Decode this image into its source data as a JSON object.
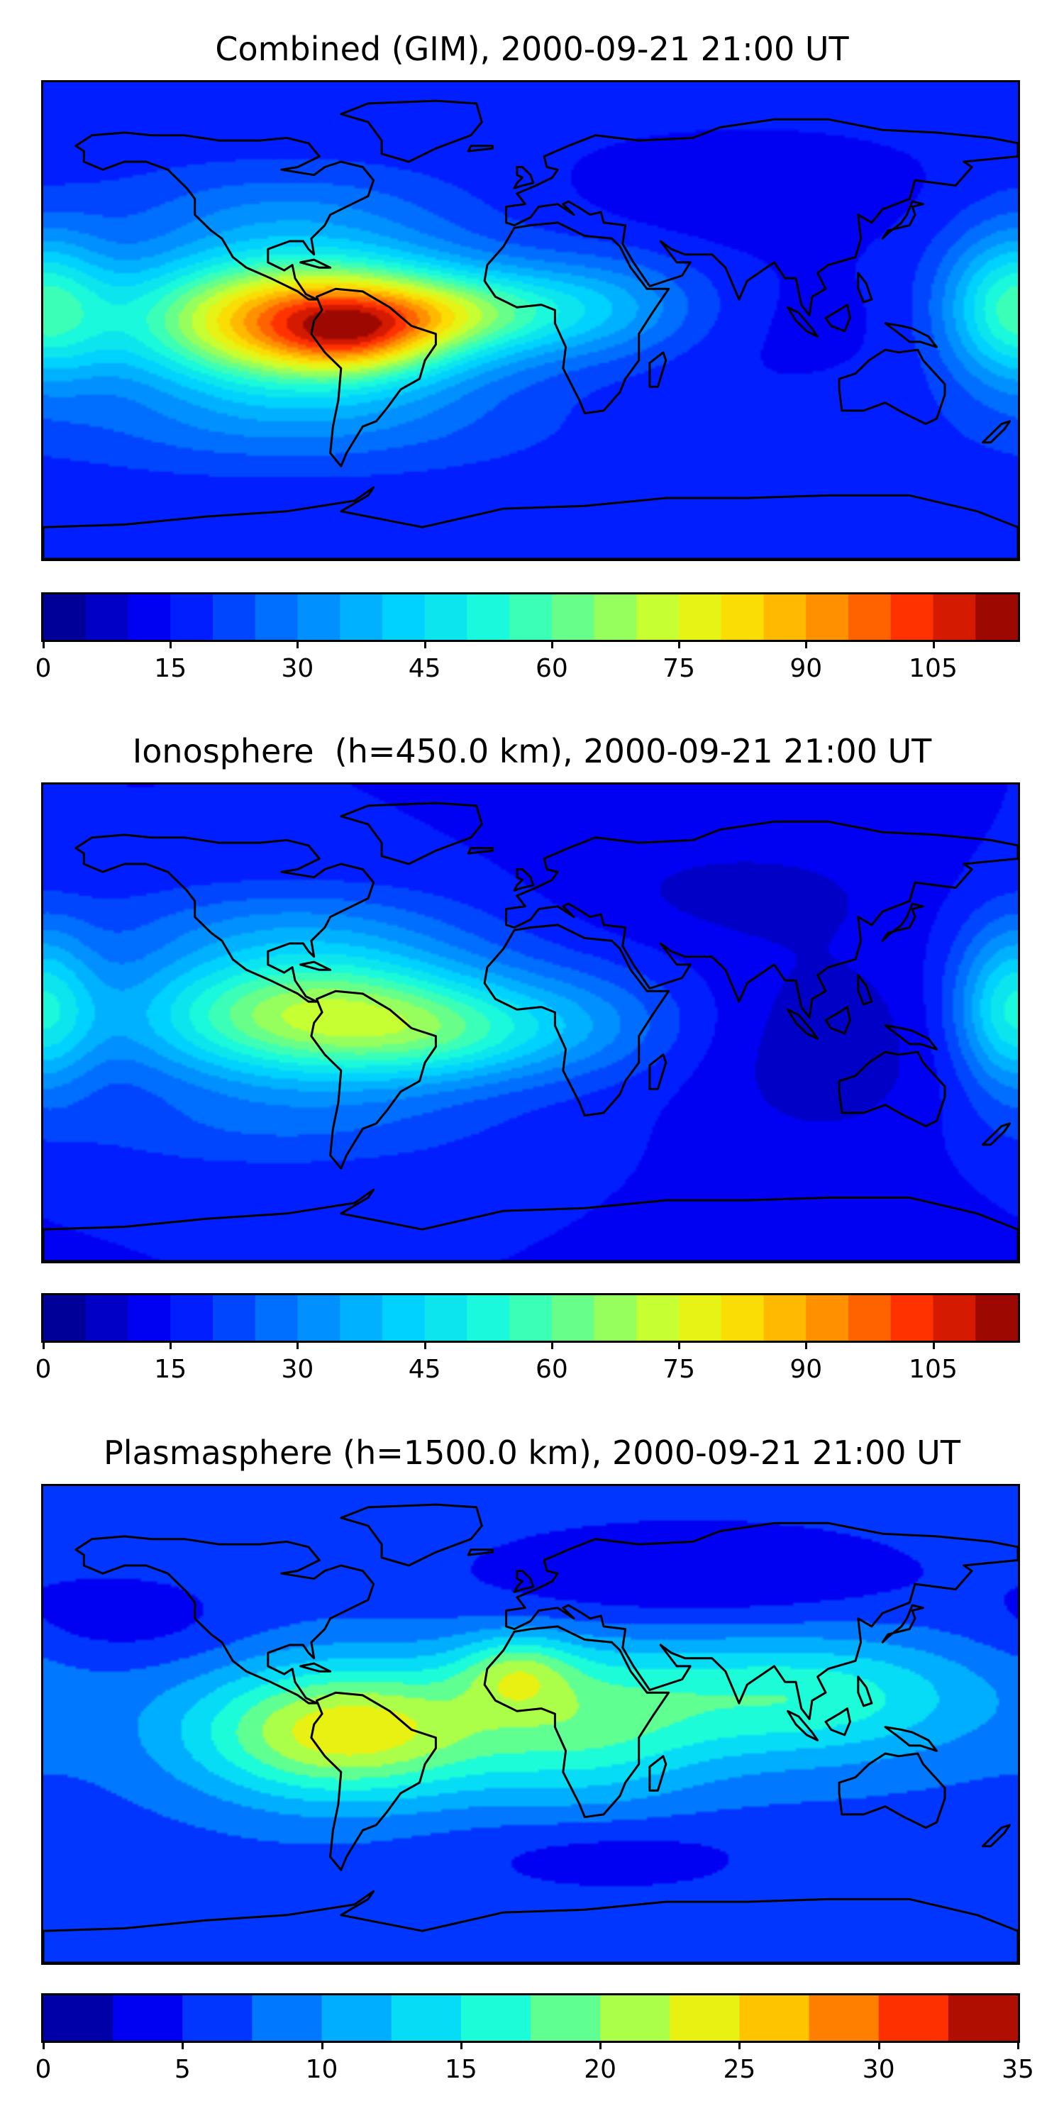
{
  "chart_data": [
    {
      "type": "heatmap",
      "title": "Combined (GIM), 2000-09-21 21:00 UT",
      "colorbar": {
        "min": 0,
        "max": 115,
        "step": 5,
        "ticks": [
          0,
          15,
          30,
          45,
          60,
          75,
          90,
          105
        ],
        "tick_labels": [
          "0",
          "15",
          "30",
          "45",
          "60",
          "75",
          "90",
          "105"
        ]
      },
      "field": {
        "background": 17,
        "blobs": [
          {
            "lon": -85,
            "lat": 0,
            "amp": 78,
            "sx": 45,
            "sy": 18
          },
          {
            "lon": -65,
            "lat": -6,
            "amp": 20,
            "sx": 20,
            "sy": 10
          },
          {
            "lon": -30,
            "lat": 3,
            "amp": 22,
            "sx": 30,
            "sy": 10
          },
          {
            "lon": 25,
            "lat": 5,
            "amp": 20,
            "sx": 30,
            "sy": 14
          },
          {
            "lon": 178,
            "lat": 5,
            "amp": 35,
            "sx": 18,
            "sy": 20
          },
          {
            "lon": -90,
            "lat": 42,
            "amp": 10,
            "sx": 45,
            "sy": 12
          },
          {
            "lon": -90,
            "lat": -40,
            "amp": 10,
            "sx": 60,
            "sy": 12
          },
          {
            "lon": 80,
            "lat": 50,
            "amp": -6,
            "sx": 50,
            "sy": 15
          },
          {
            "lon": 80,
            "lat": 0,
            "amp": -4,
            "sx": 50,
            "sy": 20
          }
        ]
      }
    },
    {
      "type": "heatmap",
      "title": "Ionosphere  (h=450.0 km), 2000-09-21 21:00 UT",
      "colorbar": {
        "min": 0,
        "max": 115,
        "step": 5,
        "ticks": [
          0,
          15,
          30,
          45,
          60,
          75,
          90,
          105
        ],
        "tick_labels": [
          "0",
          "15",
          "30",
          "45",
          "60",
          "75",
          "90",
          "105"
        ]
      },
      "field": {
        "background": 15,
        "blobs": [
          {
            "lon": -80,
            "lat": 3,
            "amp": 55,
            "sx": 48,
            "sy": 18
          },
          {
            "lon": -30,
            "lat": -5,
            "amp": 15,
            "sx": 30,
            "sy": 12
          },
          {
            "lon": 20,
            "lat": 0,
            "amp": 12,
            "sx": 30,
            "sy": 15
          },
          {
            "lon": 178,
            "lat": 5,
            "amp": 32,
            "sx": 15,
            "sy": 22
          },
          {
            "lon": -90,
            "lat": 38,
            "amp": 10,
            "sx": 50,
            "sy": 12
          },
          {
            "lon": -95,
            "lat": -40,
            "amp": 8,
            "sx": 60,
            "sy": 12
          },
          {
            "lon": 110,
            "lat": -10,
            "amp": -8,
            "sx": 35,
            "sy": 30
          },
          {
            "lon": 75,
            "lat": 50,
            "amp": -6,
            "sx": 45,
            "sy": 15
          }
        ]
      }
    },
    {
      "type": "heatmap",
      "title": "Plasmasphere (h=1500.0 km), 2000-09-21 21:00 UT",
      "colorbar": {
        "min": 0,
        "max": 35,
        "step": 2.5,
        "ticks": [
          0,
          5,
          10,
          15,
          20,
          25,
          30,
          35
        ],
        "tick_labels": [
          "0",
          "5",
          "10",
          "15",
          "20",
          "25",
          "30",
          "35"
        ]
      },
      "field": {
        "background": 6.5,
        "blobs": [
          {
            "lon": -70,
            "lat": -3,
            "amp": 17,
            "sx": 40,
            "sy": 18
          },
          {
            "lon": -5,
            "lat": 20,
            "amp": 8,
            "sx": 15,
            "sy": 10
          },
          {
            "lon": 60,
            "lat": 10,
            "amp": 7,
            "sx": 70,
            "sy": 20
          },
          {
            "lon": 110,
            "lat": 10,
            "amp": 5,
            "sx": 40,
            "sy": 15
          },
          {
            "lon": 20,
            "lat": -5,
            "amp": 6,
            "sx": 30,
            "sy": 20
          },
          {
            "lon": 60,
            "lat": 55,
            "amp": -4.5,
            "sx": 60,
            "sy": 15
          },
          {
            "lon": 30,
            "lat": -50,
            "amp": -3,
            "sx": 40,
            "sy": 10
          },
          {
            "lon": -150,
            "lat": 40,
            "amp": -3,
            "sx": 30,
            "sy": 12
          }
        ]
      }
    }
  ]
}
